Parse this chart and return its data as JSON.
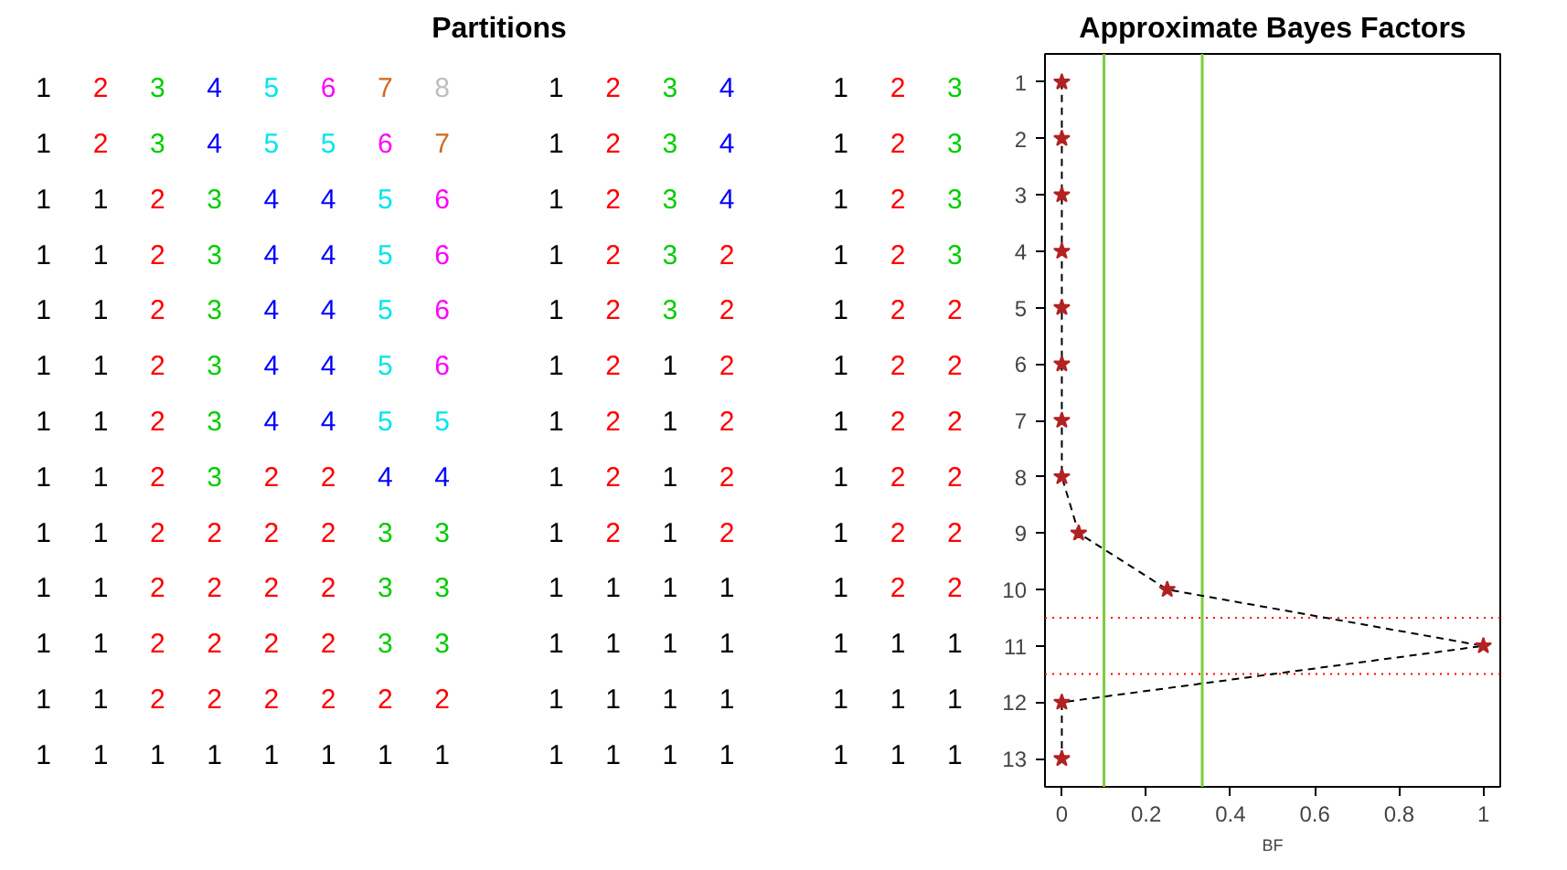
{
  "chart_data": [
    {
      "type": "heatmap",
      "data_labels": true,
      "title": "Partitions",
      "categories": [
        null,
        null,
        null,
        null,
        null,
        null,
        null,
        null,
        null,
        null,
        null,
        null,
        null,
        null,
        null,
        null,
        null
      ],
      "y_categories": [
        null,
        null,
        null,
        null,
        null,
        null,
        null,
        null,
        null,
        null,
        null,
        null,
        null
      ],
      "colors": [
        "#000000",
        "#ff0000",
        "#00cd00",
        "#0000ff",
        "#00e5ee",
        "#ff00ff",
        "#d2691e",
        "#bebebe"
      ],
      "cells": [
        [
          1,
          2,
          3,
          4,
          5,
          6,
          7,
          8,
          null,
          1,
          2,
          3,
          4,
          null,
          1,
          2,
          3
        ],
        [
          1,
          2,
          3,
          4,
          5,
          5,
          6,
          7,
          null,
          1,
          2,
          3,
          4,
          null,
          1,
          2,
          3
        ],
        [
          1,
          1,
          2,
          3,
          4,
          4,
          5,
          6,
          null,
          1,
          2,
          3,
          4,
          null,
          1,
          2,
          3
        ],
        [
          1,
          1,
          2,
          3,
          4,
          4,
          5,
          6,
          null,
          1,
          2,
          3,
          2,
          null,
          1,
          2,
          3
        ],
        [
          1,
          1,
          2,
          3,
          4,
          4,
          5,
          6,
          null,
          1,
          2,
          3,
          2,
          null,
          1,
          2,
          2
        ],
        [
          1,
          1,
          2,
          3,
          4,
          4,
          5,
          6,
          null,
          1,
          2,
          1,
          2,
          null,
          1,
          2,
          2
        ],
        [
          1,
          1,
          2,
          3,
          4,
          4,
          5,
          5,
          null,
          1,
          2,
          1,
          2,
          null,
          1,
          2,
          2
        ],
        [
          1,
          1,
          2,
          3,
          2,
          2,
          4,
          4,
          null,
          1,
          2,
          1,
          2,
          null,
          1,
          2,
          2
        ],
        [
          1,
          1,
          2,
          2,
          2,
          2,
          3,
          3,
          null,
          1,
          2,
          1,
          2,
          null,
          1,
          2,
          2
        ],
        [
          1,
          1,
          2,
          2,
          2,
          2,
          3,
          3,
          null,
          1,
          1,
          1,
          1,
          null,
          1,
          2,
          2
        ],
        [
          1,
          1,
          2,
          2,
          2,
          2,
          3,
          3,
          null,
          1,
          1,
          1,
          1,
          null,
          1,
          1,
          1
        ],
        [
          1,
          1,
          2,
          2,
          2,
          2,
          2,
          2,
          null,
          1,
          1,
          1,
          1,
          null,
          1,
          1,
          1
        ],
        [
          1,
          1,
          1,
          1,
          1,
          1,
          1,
          1,
          null,
          1,
          1,
          1,
          1,
          null,
          1,
          1,
          1
        ]
      ]
    },
    {
      "type": "line",
      "title": "Approximate Bayes Factors",
      "xlabel": "BF",
      "marker": "star",
      "line_style": "dashed",
      "series": [
        {
          "color": "#b22222",
          "x": [
            0,
            0,
            0,
            0,
            0,
            0,
            0,
            0,
            0.04,
            0.25,
            1,
            0,
            0
          ],
          "values": [
            1,
            2,
            3,
            4,
            5,
            6,
            7,
            8,
            9,
            10,
            11,
            12,
            13
          ]
        }
      ],
      "xlim": [
        -0.04,
        1.04
      ],
      "xticks": [
        0,
        0.2,
        0.4,
        0.6,
        0.8,
        1
      ],
      "ylim": [
        13.5,
        0.5
      ],
      "yticks": [
        1,
        2,
        3,
        4,
        5,
        6,
        7,
        8,
        9,
        10,
        11,
        12,
        13
      ],
      "ref_lines": [
        {
          "axis": "y",
          "value": 10.5,
          "color": "#ff0000",
          "line_style": "dotted"
        },
        {
          "axis": "y",
          "value": 11.5,
          "color": "#ff0000",
          "line_style": "dotted"
        },
        {
          "axis": "x",
          "value": 0.1,
          "color": "#7ccd3c",
          "line_style": "solid"
        },
        {
          "axis": "x",
          "value": 0.333,
          "color": "#7ccd3c",
          "line_style": "solid"
        }
      ]
    }
  ]
}
